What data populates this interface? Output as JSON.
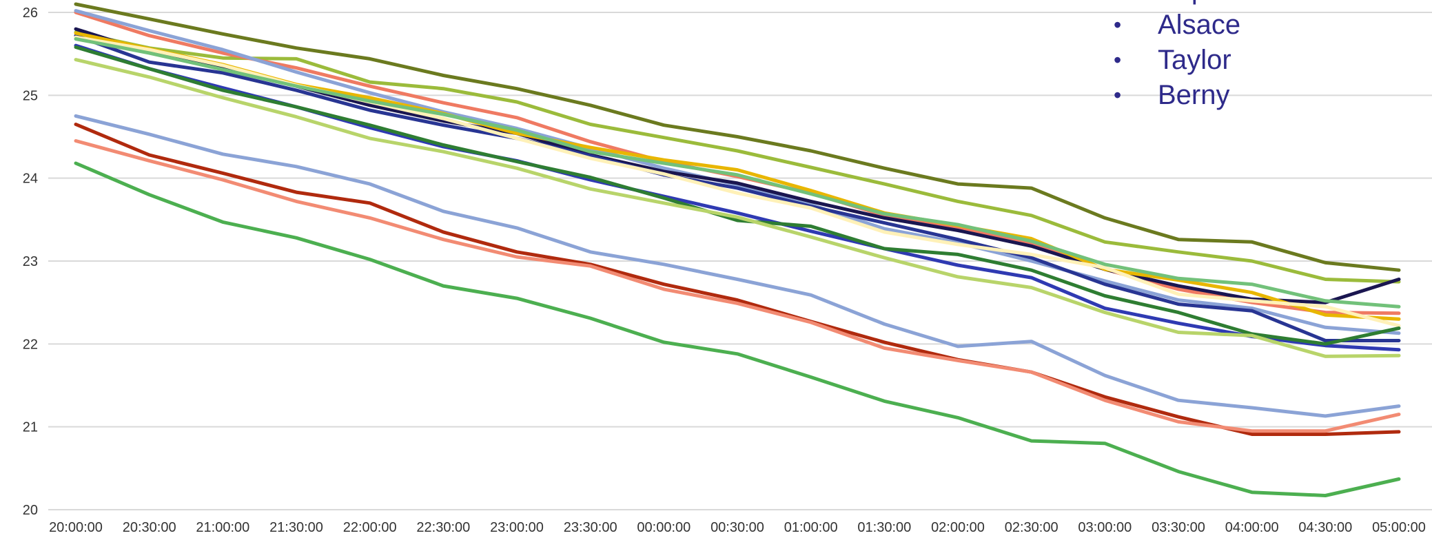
{
  "chart_data": {
    "type": "line",
    "title": "",
    "xlabel": "",
    "ylabel": "",
    "x": [
      "20:00:00",
      "20:30:00",
      "21:00:00",
      "21:30:00",
      "22:00:00",
      "22:30:00",
      "23:00:00",
      "23:30:00",
      "00:00:00",
      "00:30:00",
      "01:00:00",
      "01:30:00",
      "02:00:00",
      "02:30:00",
      "03:00:00",
      "03:30:00",
      "04:00:00",
      "04:30:00",
      "05:00:00"
    ],
    "ylim": [
      20,
      26
    ],
    "yticks": [
      20,
      21,
      22,
      23,
      24,
      25,
      26
    ],
    "grid": true,
    "legend_placement": "top-right",
    "legend_entries": [
      "Baptistin Paul",
      "Alsace",
      "Taylor",
      "Berny"
    ],
    "series": [
      {
        "color": "#6b7a1f",
        "values": [
          26.1,
          25.92,
          25.74,
          25.57,
          25.44,
          25.24,
          25.08,
          24.88,
          24.64,
          24.5,
          24.33,
          24.12,
          23.93,
          23.88,
          23.52,
          23.26,
          23.23,
          22.98,
          22.89
        ]
      },
      {
        "color": "#9bbb3b",
        "values": [
          25.76,
          25.57,
          25.45,
          25.44,
          25.16,
          25.08,
          24.92,
          24.65,
          24.49,
          24.33,
          24.13,
          23.93,
          23.72,
          23.55,
          23.23,
          23.11,
          23.0,
          22.78,
          22.75
        ]
      },
      {
        "color": "#ef7a62",
        "values": [
          26.0,
          25.72,
          25.51,
          25.33,
          25.11,
          24.91,
          24.73,
          24.44,
          24.2,
          24.02,
          23.82,
          23.55,
          23.4,
          23.22,
          22.9,
          22.66,
          22.5,
          22.38,
          22.37
        ]
      },
      {
        "color": "#8ba3d6",
        "values": [
          26.02,
          25.78,
          25.55,
          25.28,
          25.03,
          24.8,
          24.6,
          24.36,
          24.12,
          23.92,
          23.68,
          23.39,
          23.22,
          23.0,
          22.76,
          22.53,
          22.43,
          22.2,
          22.13
        ]
      },
      {
        "color": "#1a1650",
        "values": [
          25.8,
          25.52,
          25.32,
          25.11,
          24.88,
          24.69,
          24.54,
          24.28,
          24.08,
          23.94,
          23.72,
          23.52,
          23.37,
          23.18,
          22.9,
          22.7,
          22.54,
          22.5,
          22.78
        ]
      },
      {
        "color": "#283593",
        "values": [
          25.72,
          25.4,
          25.27,
          25.06,
          24.82,
          24.64,
          24.48,
          24.27,
          24.04,
          23.88,
          23.66,
          23.46,
          23.26,
          23.04,
          22.72,
          22.48,
          22.4,
          22.04,
          22.04
        ]
      },
      {
        "color": "#2f3ab2",
        "values": [
          25.6,
          25.32,
          25.09,
          24.86,
          24.61,
          24.38,
          24.21,
          23.98,
          23.78,
          23.58,
          23.36,
          23.15,
          22.95,
          22.8,
          22.43,
          22.25,
          22.09,
          21.98,
          21.93
        ]
      },
      {
        "color": "#e8b600",
        "values": [
          25.75,
          25.56,
          25.37,
          25.13,
          24.97,
          24.78,
          24.54,
          24.37,
          24.22,
          24.1,
          23.85,
          23.58,
          23.43,
          23.27,
          22.9,
          22.77,
          22.62,
          22.35,
          22.3
        ]
      },
      {
        "color": "#fff1b8",
        "values": [
          25.7,
          25.55,
          25.36,
          25.12,
          24.92,
          24.72,
          24.48,
          24.24,
          24.05,
          23.82,
          23.64,
          23.35,
          23.2,
          23.08,
          22.92,
          22.6,
          22.52,
          22.45,
          22.22
        ]
      },
      {
        "color": "#72c17a",
        "values": [
          25.68,
          25.51,
          25.31,
          25.11,
          24.93,
          24.77,
          24.58,
          24.32,
          24.18,
          24.04,
          23.81,
          23.57,
          23.44,
          23.24,
          22.96,
          22.79,
          22.72,
          22.52,
          22.45
        ]
      },
      {
        "color": "#2e7d32",
        "values": [
          25.58,
          25.32,
          25.06,
          24.86,
          24.64,
          24.4,
          24.2,
          24.01,
          23.76,
          23.49,
          23.42,
          23.15,
          23.08,
          22.89,
          22.58,
          22.38,
          22.12,
          22.0,
          22.19
        ]
      },
      {
        "color": "#b8d46a",
        "values": [
          25.43,
          25.22,
          24.97,
          24.74,
          24.48,
          24.32,
          24.12,
          23.87,
          23.7,
          23.53,
          23.29,
          23.04,
          22.81,
          22.68,
          22.38,
          22.14,
          22.1,
          21.85,
          21.86
        ]
      },
      {
        "color": "#8ba3d6",
        "values": [
          24.75,
          24.53,
          24.29,
          24.14,
          23.93,
          23.6,
          23.4,
          23.11,
          22.96,
          22.78,
          22.59,
          22.24,
          21.97,
          22.03,
          21.62,
          21.32,
          21.23,
          21.13,
          21.25
        ]
      },
      {
        "color": "#b02a0e",
        "values": [
          24.65,
          24.28,
          24.06,
          23.83,
          23.7,
          23.35,
          23.11,
          22.96,
          22.72,
          22.53,
          22.27,
          22.02,
          21.81,
          21.66,
          21.36,
          21.12,
          20.91,
          20.91,
          20.94
        ]
      },
      {
        "color": "#f28b73",
        "values": [
          24.45,
          24.21,
          23.98,
          23.72,
          23.52,
          23.26,
          23.05,
          22.94,
          22.66,
          22.49,
          22.26,
          21.95,
          21.8,
          21.66,
          21.32,
          21.06,
          20.95,
          20.95,
          21.15
        ]
      },
      {
        "color": "#4caf50",
        "values": [
          24.18,
          23.8,
          23.47,
          23.28,
          23.02,
          22.7,
          22.55,
          22.31,
          22.02,
          21.88,
          21.6,
          21.31,
          21.11,
          20.83,
          20.8,
          20.46,
          20.21,
          20.17,
          20.37
        ]
      }
    ]
  }
}
